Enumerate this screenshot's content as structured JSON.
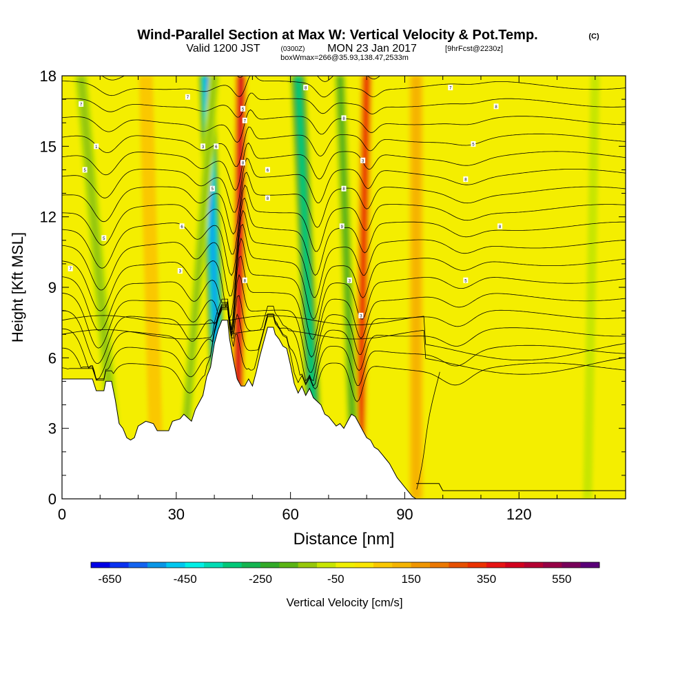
{
  "chart_data": {
    "type": "heatmap",
    "title": "Wind-Parallel Section at Max W: Vertical Velocity & Pot.Temp.",
    "title_mark": "(C)",
    "subtitle": {
      "valid": "Valid 1200 JST",
      "utc": "(0300Z)",
      "date": "MON 23 Jan 2017",
      "forecast": "[9hrFcst@2230z]"
    },
    "box_note": "boxWmax=266@35.93,138.47,2533m",
    "xlabel": "Distance [nm]",
    "ylabel": "Height [Kft MSL]",
    "xlim": [
      0,
      148
    ],
    "ylim": [
      0,
      18
    ],
    "x_ticks": [
      "0",
      "30",
      "60",
      "90",
      "120"
    ],
    "x_tick_values": [
      0,
      30,
      60,
      90,
      120
    ],
    "y_ticks": [
      "0",
      "3",
      "6",
      "9",
      "12",
      "15",
      "18"
    ],
    "y_tick_values": [
      0,
      3,
      6,
      9,
      12,
      15,
      18
    ],
    "terrain_top_kft": [
      [
        0,
        5.1
      ],
      [
        8,
        5.1
      ],
      [
        9,
        4.6
      ],
      [
        11,
        4.6
      ],
      [
        11.5,
        5.0
      ],
      [
        13,
        5.0
      ],
      [
        14,
        4.2
      ],
      [
        15,
        3.2
      ],
      [
        16,
        3.0
      ],
      [
        17,
        2.6
      ],
      [
        18,
        2.5
      ],
      [
        19,
        2.6
      ],
      [
        20,
        3.1
      ],
      [
        22,
        3.3
      ],
      [
        24,
        3.2
      ],
      [
        25,
        2.9
      ],
      [
        28,
        2.9
      ],
      [
        29,
        3.3
      ],
      [
        31,
        3.4
      ],
      [
        32,
        3.6
      ],
      [
        34,
        3.3
      ],
      [
        35,
        3.8
      ],
      [
        37,
        4.4
      ],
      [
        38,
        5.2
      ],
      [
        39,
        5.6
      ],
      [
        40,
        6.6
      ],
      [
        41,
        7.2
      ],
      [
        42,
        7.6
      ],
      [
        43.5,
        7.6
      ],
      [
        44,
        6.8
      ],
      [
        45,
        5.9
      ],
      [
        46,
        5.1
      ],
      [
        47,
        4.8
      ],
      [
        48,
        4.8
      ],
      [
        49,
        5.1
      ],
      [
        50,
        4.8
      ],
      [
        51,
        5.4
      ],
      [
        52,
        6.1
      ],
      [
        53,
        6.7
      ],
      [
        54,
        7.3
      ],
      [
        55.5,
        7.3
      ],
      [
        56,
        7.0
      ],
      [
        57,
        6.8
      ],
      [
        58,
        6.5
      ],
      [
        59,
        6.4
      ],
      [
        60,
        5.7
      ],
      [
        61,
        4.9
      ],
      [
        62,
        4.5
      ],
      [
        63,
        4.8
      ],
      [
        64,
        4.4
      ],
      [
        65,
        4.7
      ],
      [
        66,
        4.3
      ],
      [
        68,
        4.0
      ],
      [
        69,
        3.6
      ],
      [
        70,
        3.5
      ],
      [
        71,
        3.3
      ],
      [
        72,
        3.1
      ],
      [
        73,
        3.2
      ],
      [
        74,
        3.0
      ],
      [
        75,
        3.3
      ],
      [
        76,
        3.6
      ],
      [
        77,
        3.5
      ],
      [
        78,
        3.2
      ],
      [
        79,
        2.9
      ],
      [
        80,
        2.6
      ],
      [
        81,
        2.5
      ],
      [
        82,
        2.2
      ],
      [
        83,
        2.1
      ],
      [
        84,
        1.9
      ],
      [
        85,
        1.7
      ],
      [
        86,
        1.5
      ],
      [
        87,
        1.2
      ],
      [
        88,
        0.9
      ],
      [
        89,
        0.7
      ],
      [
        90,
        0.5
      ],
      [
        91,
        0.3
      ],
      [
        92,
        0.1
      ],
      [
        93,
        0
      ],
      [
        148,
        0
      ]
    ],
    "upper_mountain_kft": [
      [
        93,
        0.65
      ],
      [
        99,
        0.65
      ],
      [
        100,
        0.35
      ],
      [
        148,
        0.35
      ]
    ],
    "colorbar": {
      "label": "Vertical Velocity [cm/s]",
      "tick_labels": [
        "-650",
        "-450",
        "-250",
        "-50",
        "150",
        "350",
        "550"
      ],
      "tick_values": [
        -650,
        -450,
        -250,
        -50,
        150,
        350,
        550
      ],
      "min": -700,
      "step": 50,
      "colors": [
        "#0000e6",
        "#0a32f0",
        "#1464f0",
        "#0a96e6",
        "#00c8f0",
        "#00f0e6",
        "#00dcb4",
        "#00c878",
        "#14b450",
        "#32aa28",
        "#5ab414",
        "#96c80a",
        "#c8e600",
        "#f0f000",
        "#fae600",
        "#fac800",
        "#f5b400",
        "#f09600",
        "#eb7800",
        "#e65000",
        "#eb3200",
        "#e61414",
        "#d2001e",
        "#b40032",
        "#960046",
        "#78005a",
        "#5a0078"
      ]
    },
    "w_features": [
      {
        "type": "down",
        "x0": 42,
        "x1": 38,
        "width": 2.2,
        "w": -520
      },
      {
        "type": "up",
        "x0": 46,
        "x1": 47,
        "width": 1.6,
        "w": 420
      },
      {
        "type": "down",
        "x0": 67,
        "x1": 62,
        "width": 2.2,
        "w": -320
      },
      {
        "type": "up",
        "x0": 78,
        "x1": 80,
        "width": 1.6,
        "w": 330
      },
      {
        "type": "down",
        "x0": 31,
        "x1": 40,
        "width": 1.4,
        "w": -140
      },
      {
        "type": "down",
        "x0": 15,
        "x1": 5,
        "width": 1.8,
        "w": -110
      },
      {
        "type": "down",
        "x0": 77,
        "x1": 73,
        "width": 1.6,
        "w": -150
      },
      {
        "type": "up",
        "x0": 93,
        "x1": 93,
        "width": 1.8,
        "w": 130
      },
      {
        "type": "up",
        "x0": 25,
        "x1": 22,
        "width": 1.8,
        "w": 70
      },
      {
        "type": "down",
        "x0": 138,
        "x1": 140,
        "width": 1.2,
        "w": -70
      }
    ],
    "theta_contour_labels": [
      {
        "x": 2.2,
        "y": 9.8,
        "text": "7"
      },
      {
        "x": 11,
        "y": 11.1,
        "text": "5"
      },
      {
        "x": 6,
        "y": 14.0,
        "text": "5"
      },
      {
        "x": 9,
        "y": 15.0,
        "text": "1"
      },
      {
        "x": 5,
        "y": 16.8,
        "text": "7"
      },
      {
        "x": 31,
        "y": 9.7,
        "text": "3"
      },
      {
        "x": 31.5,
        "y": 11.6,
        "text": "6"
      },
      {
        "x": 33,
        "y": 17.1,
        "text": "7"
      },
      {
        "x": 37,
        "y": 15.0,
        "text": "3"
      },
      {
        "x": 39.5,
        "y": 13.2,
        "text": "5"
      },
      {
        "x": 40.5,
        "y": 15.0,
        "text": "6"
      },
      {
        "x": 48,
        "y": 9.3,
        "text": "8"
      },
      {
        "x": 47.5,
        "y": 14.3,
        "text": "8"
      },
      {
        "x": 47.5,
        "y": 16.6,
        "text": "5"
      },
      {
        "x": 48,
        "y": 16.1,
        "text": "7"
      },
      {
        "x": 54,
        "y": 14.0,
        "text": "6"
      },
      {
        "x": 54,
        "y": 12.8,
        "text": "8"
      },
      {
        "x": 64,
        "y": 17.5,
        "text": "8"
      },
      {
        "x": 74,
        "y": 13.2,
        "text": "8"
      },
      {
        "x": 73.5,
        "y": 11.6,
        "text": "9"
      },
      {
        "x": 75.5,
        "y": 9.3,
        "text": "3"
      },
      {
        "x": 74,
        "y": 16.2,
        "text": "8"
      },
      {
        "x": 78.5,
        "y": 7.8,
        "text": "3"
      },
      {
        "x": 79,
        "y": 14.4,
        "text": "3"
      },
      {
        "x": 102,
        "y": 17.5,
        "text": "7"
      },
      {
        "x": 108,
        "y": 15.1,
        "text": "5"
      },
      {
        "x": 106,
        "y": 9.3,
        "text": "5"
      },
      {
        "x": 106,
        "y": 13.6,
        "text": "8"
      },
      {
        "x": 114,
        "y": 16.7,
        "text": "8"
      },
      {
        "x": 115,
        "y": 11.6,
        "text": "8"
      }
    ]
  }
}
